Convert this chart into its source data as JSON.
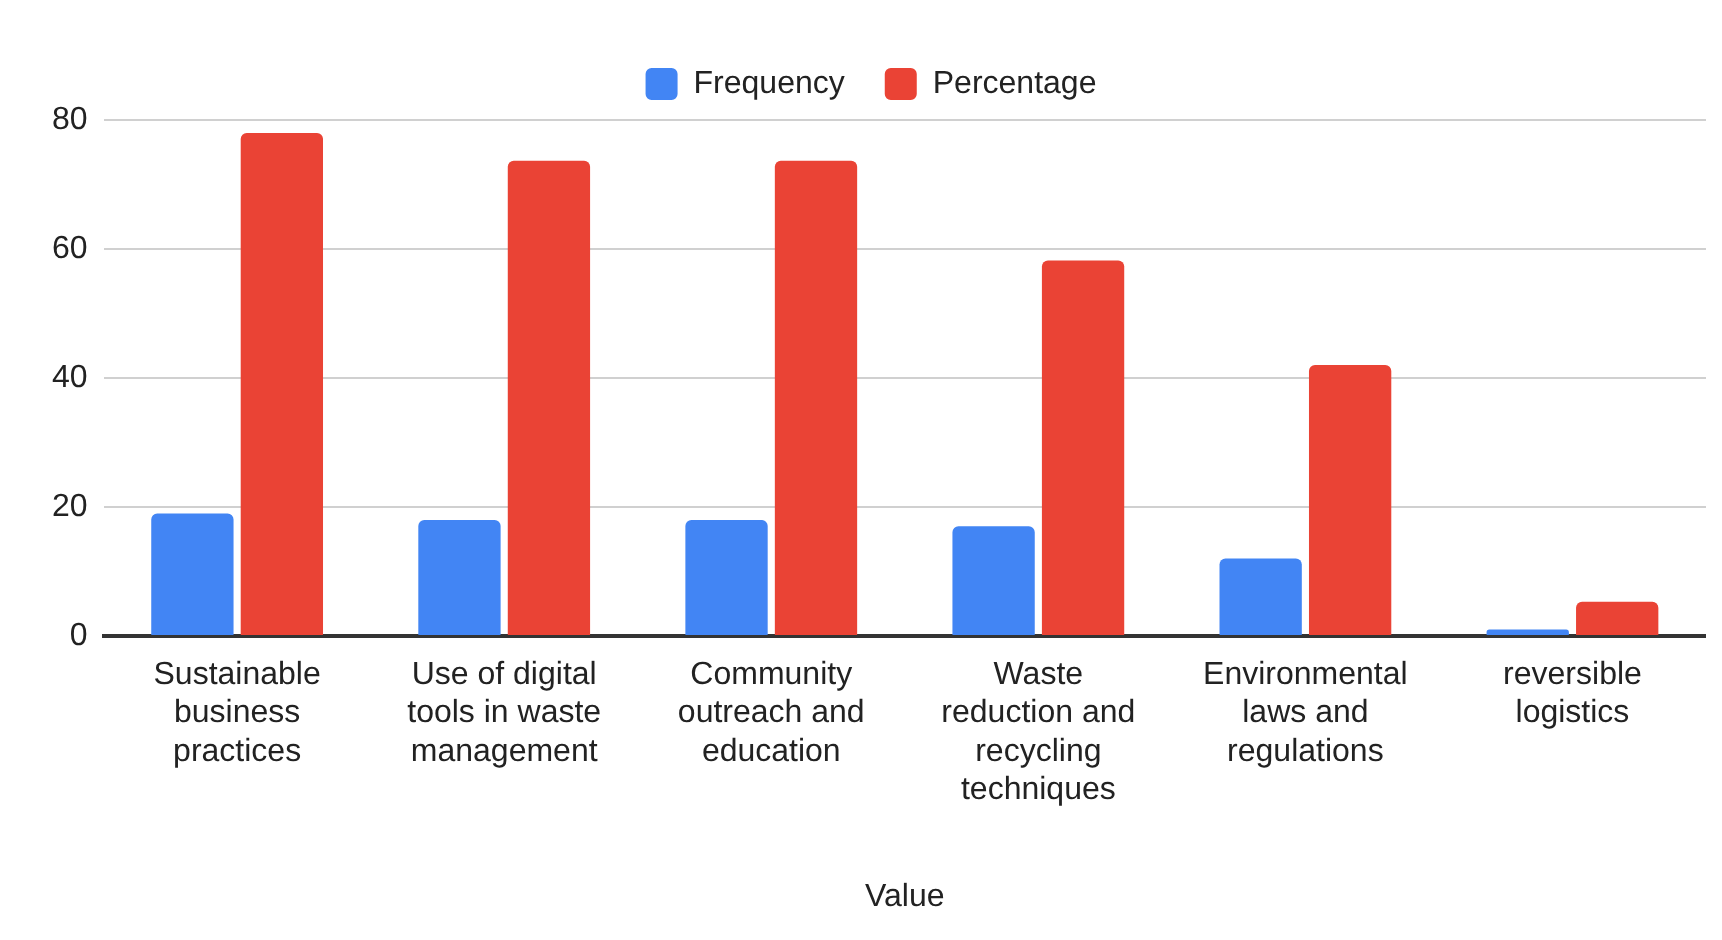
{
  "chart_data": {
    "type": "bar",
    "xlabel": "Value",
    "categories": [
      "Sustainable business practices",
      "Use of digital tools in waste management",
      "Community outreach and education",
      "Waste reduction and recycling techniques",
      "Environmental laws and regulations",
      "reversible logistics"
    ],
    "series": [
      {
        "name": "Frequency",
        "color": "#4285f4",
        "values": [
          19,
          18,
          18,
          17,
          12,
          1
        ]
      },
      {
        "name": "Percentage",
        "color": "#ea4335",
        "values": [
          78,
          73.7,
          73.7,
          58.2,
          42,
          5.3
        ]
      }
    ],
    "ylim": [
      0,
      80
    ],
    "yticks": [
      0,
      20,
      40,
      60,
      80
    ],
    "grid": "y",
    "legend": "top"
  }
}
